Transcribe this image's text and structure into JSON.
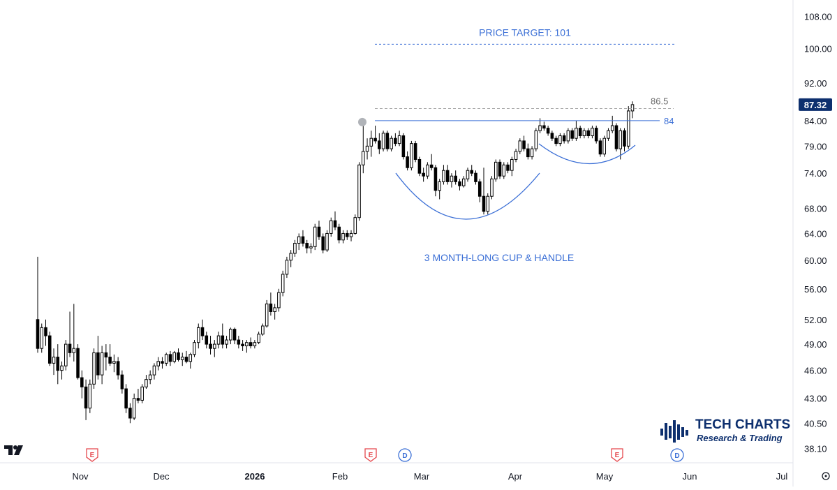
{
  "chart_data": {
    "type": "candlestick",
    "title": "",
    "y_axis_ticks": [
      "108.00",
      "100.00",
      "92.00",
      "84.00",
      "79.00",
      "74.00",
      "68.00",
      "64.00",
      "60.00",
      "56.00",
      "52.00",
      "49.00",
      "46.00",
      "43.00",
      "40.50",
      "38.10"
    ],
    "x_axis_ticks": [
      {
        "label": "Nov",
        "bold": false
      },
      {
        "label": "Dec",
        "bold": false
      },
      {
        "label": "2026",
        "bold": true
      },
      {
        "label": "Feb",
        "bold": false
      },
      {
        "label": "Mar",
        "bold": false
      },
      {
        "label": "Apr",
        "bold": false
      },
      {
        "label": "May",
        "bold": false
      },
      {
        "label": "Jun",
        "bold": false
      },
      {
        "label": "Jul",
        "bold": false
      }
    ],
    "y_scale": "log",
    "ylim": [
      37.5,
      112
    ],
    "last_price": "87.32",
    "annotations": {
      "price_target": "PRICE TARGET: 101",
      "price_target_value": 101,
      "pattern_label": "3 MONTH-LONG CUP & HANDLE",
      "resistance_value": 84,
      "resistance_label": "84",
      "upper_value": 86.5,
      "upper_label": "86.5"
    },
    "event_markers": [
      {
        "type": "E",
        "near": "Nov"
      },
      {
        "type": "E",
        "near": "Feb"
      },
      {
        "type": "D",
        "near": "Feb"
      },
      {
        "type": "E",
        "near": "May"
      },
      {
        "type": "D",
        "near": "May"
      }
    ],
    "series": [
      {
        "values": [
          [
            52.0,
            60.5,
            48.0,
            48.5
          ],
          [
            48.5,
            51.5,
            48.0,
            51.0
          ],
          [
            51.0,
            52.0,
            48.8,
            50.0
          ],
          [
            50.0,
            50.5,
            46.5,
            46.8
          ],
          [
            46.8,
            48.5,
            45.5,
            47.5
          ],
          [
            47.5,
            49.0,
            44.5,
            46.0
          ],
          [
            46.0,
            47.0,
            45.0,
            46.5
          ],
          [
            46.5,
            49.5,
            46.0,
            49.0
          ],
          [
            49.0,
            53.0,
            47.5,
            48.0
          ],
          [
            48.0,
            54.0,
            47.0,
            48.5
          ],
          [
            48.5,
            49.0,
            45.0,
            45.2
          ],
          [
            45.2,
            46.0,
            43.0,
            44.2
          ],
          [
            44.2,
            45.0,
            40.8,
            42.0
          ],
          [
            42.0,
            45.0,
            41.5,
            44.5
          ],
          [
            44.5,
            48.5,
            44.0,
            48.0
          ],
          [
            48.0,
            50.0,
            45.0,
            45.5
          ],
          [
            45.5,
            48.8,
            44.5,
            48.0
          ],
          [
            48.0,
            49.0,
            46.0,
            47.5
          ],
          [
            47.5,
            49.0,
            46.5,
            46.8
          ],
          [
            46.8,
            47.8,
            45.8,
            47.0
          ],
          [
            47.0,
            47.5,
            45.0,
            45.5
          ],
          [
            45.5,
            46.0,
            43.5,
            44.0
          ],
          [
            44.0,
            44.5,
            41.5,
            42.0
          ],
          [
            42.0,
            42.5,
            40.5,
            41.0
          ],
          [
            41.0,
            43.5,
            40.8,
            43.0
          ],
          [
            43.0,
            44.0,
            42.5,
            42.8
          ],
          [
            42.8,
            44.5,
            42.5,
            44.2
          ],
          [
            44.2,
            45.5,
            44.0,
            45.0
          ],
          [
            45.0,
            46.0,
            44.5,
            45.5
          ],
          [
            45.5,
            46.8,
            45.0,
            46.5
          ],
          [
            46.5,
            47.5,
            46.0,
            47.0
          ],
          [
            47.0,
            47.5,
            46.2,
            46.8
          ],
          [
            46.8,
            48.0,
            46.5,
            47.8
          ],
          [
            47.8,
            48.2,
            46.5,
            47.0
          ],
          [
            47.0,
            48.2,
            46.8,
            48.0
          ],
          [
            48.0,
            48.5,
            47.0,
            47.2
          ],
          [
            47.2,
            48.0,
            46.5,
            47.5
          ],
          [
            47.5,
            48.2,
            46.8,
            47.0
          ],
          [
            47.0,
            48.0,
            46.2,
            47.8
          ],
          [
            47.8,
            49.5,
            47.5,
            49.2
          ],
          [
            49.2,
            51.5,
            48.5,
            51.0
          ],
          [
            51.0,
            52.0,
            49.5,
            50.0
          ],
          [
            50.0,
            50.5,
            48.5,
            49.0
          ],
          [
            49.0,
            50.0,
            47.8,
            48.5
          ],
          [
            48.5,
            49.5,
            47.5,
            49.0
          ],
          [
            49.0,
            50.5,
            48.5,
            50.0
          ],
          [
            50.0,
            51.5,
            48.5,
            49.0
          ],
          [
            49.0,
            50.0,
            48.5,
            49.5
          ],
          [
            49.5,
            51.0,
            49.0,
            50.8
          ],
          [
            50.8,
            51.0,
            49.0,
            49.5
          ],
          [
            49.5,
            50.0,
            48.5,
            49.0
          ],
          [
            49.0,
            49.5,
            48.2,
            48.8
          ],
          [
            48.8,
            49.5,
            48.0,
            49.2
          ],
          [
            49.2,
            49.8,
            48.5,
            48.8
          ],
          [
            48.8,
            49.5,
            48.5,
            49.2
          ],
          [
            49.2,
            50.5,
            49.0,
            50.2
          ],
          [
            50.2,
            51.5,
            50.0,
            51.2
          ],
          [
            51.2,
            54.5,
            51.0,
            54.0
          ],
          [
            54.0,
            55.5,
            52.5,
            53.0
          ],
          [
            53.0,
            54.0,
            52.0,
            53.5
          ],
          [
            53.5,
            56.0,
            53.0,
            55.5
          ],
          [
            55.5,
            58.5,
            55.0,
            58.0
          ],
          [
            58.0,
            60.5,
            57.5,
            60.0
          ],
          [
            60.0,
            61.5,
            59.0,
            61.0
          ],
          [
            61.0,
            63.0,
            60.5,
            62.5
          ],
          [
            62.5,
            64.0,
            61.5,
            63.5
          ],
          [
            63.5,
            64.5,
            62.0,
            62.5
          ],
          [
            62.5,
            63.0,
            61.0,
            61.8
          ],
          [
            61.8,
            62.5,
            61.0,
            62.0
          ],
          [
            62.0,
            65.5,
            61.5,
            65.0
          ],
          [
            65.0,
            66.0,
            63.0,
            63.5
          ],
          [
            63.5,
            64.0,
            61.0,
            61.5
          ],
          [
            61.5,
            64.5,
            61.2,
            64.0
          ],
          [
            64.0,
            66.5,
            63.5,
            66.0
          ],
          [
            66.0,
            67.5,
            64.5,
            65.0
          ],
          [
            65.0,
            65.5,
            62.5,
            63.0
          ],
          [
            63.0,
            64.5,
            62.5,
            64.0
          ],
          [
            64.0,
            64.5,
            63.0,
            63.5
          ],
          [
            63.5,
            64.5,
            62.8,
            64.0
          ],
          [
            64.0,
            67.0,
            63.8,
            66.5
          ],
          [
            66.5,
            76.0,
            66.0,
            75.5
          ],
          [
            75.5,
            84.0,
            74.0,
            78.0
          ],
          [
            78.0,
            80.5,
            76.5,
            79.0
          ],
          [
            79.0,
            82.0,
            77.0,
            80.5
          ],
          [
            80.5,
            83.0,
            79.5,
            80.0
          ],
          [
            80.0,
            81.5,
            77.5,
            78.5
          ],
          [
            78.5,
            82.0,
            78.0,
            81.5
          ],
          [
            81.5,
            82.0,
            78.0,
            78.5
          ],
          [
            78.5,
            81.0,
            78.0,
            80.5
          ],
          [
            80.5,
            81.5,
            79.0,
            79.5
          ],
          [
            79.5,
            82.0,
            79.0,
            81.0
          ],
          [
            81.0,
            81.5,
            76.5,
            77.0
          ],
          [
            77.0,
            78.0,
            74.5,
            75.0
          ],
          [
            75.0,
            80.0,
            74.5,
            79.5
          ],
          [
            79.5,
            80.0,
            76.0,
            76.5
          ],
          [
            76.5,
            77.0,
            73.5,
            74.0
          ],
          [
            74.0,
            75.0,
            72.5,
            73.5
          ],
          [
            73.5,
            76.0,
            73.0,
            75.5
          ],
          [
            75.5,
            77.5,
            74.5,
            75.0
          ],
          [
            75.0,
            75.5,
            70.0,
            71.0
          ],
          [
            71.0,
            73.0,
            69.5,
            72.5
          ],
          [
            72.5,
            75.5,
            72.0,
            74.5
          ],
          [
            74.5,
            75.5,
            72.0,
            72.5
          ],
          [
            72.5,
            74.0,
            71.5,
            73.5
          ],
          [
            73.5,
            74.5,
            72.0,
            72.5
          ],
          [
            72.5,
            73.0,
            71.0,
            71.8
          ],
          [
            71.8,
            73.5,
            71.5,
            73.0
          ],
          [
            73.0,
            75.0,
            72.5,
            74.5
          ],
          [
            74.5,
            75.5,
            73.5,
            74.0
          ],
          [
            74.0,
            74.5,
            72.0,
            72.5
          ],
          [
            72.5,
            73.0,
            69.0,
            70.0
          ],
          [
            70.0,
            75.0,
            67.0,
            67.5
          ],
          [
            67.5,
            70.5,
            67.0,
            70.0
          ],
          [
            70.0,
            73.5,
            69.5,
            73.0
          ],
          [
            73.0,
            76.5,
            72.5,
            76.0
          ],
          [
            76.0,
            76.5,
            73.0,
            73.5
          ],
          [
            73.5,
            76.0,
            73.0,
            75.5
          ],
          [
            75.5,
            76.0,
            74.0,
            74.5
          ],
          [
            74.5,
            77.0,
            73.5,
            76.5
          ],
          [
            76.5,
            78.5,
            76.0,
            78.0
          ],
          [
            78.0,
            80.5,
            77.5,
            80.0
          ],
          [
            80.0,
            81.0,
            78.0,
            78.5
          ],
          [
            78.5,
            79.5,
            76.5,
            77.0
          ],
          [
            77.0,
            79.0,
            76.5,
            78.5
          ],
          [
            78.5,
            82.5,
            78.0,
            82.0
          ],
          [
            82.0,
            84.5,
            81.5,
            83.0
          ],
          [
            83.0,
            83.8,
            82.0,
            82.5
          ],
          [
            82.5,
            83.0,
            81.0,
            81.5
          ],
          [
            81.5,
            82.0,
            80.0,
            80.5
          ],
          [
            80.5,
            81.0,
            79.0,
            79.5
          ],
          [
            79.5,
            81.5,
            79.0,
            81.0
          ],
          [
            81.0,
            81.5,
            79.5,
            80.0
          ],
          [
            80.0,
            82.5,
            79.5,
            82.0
          ],
          [
            82.0,
            82.5,
            80.0,
            80.5
          ],
          [
            80.5,
            84.0,
            80.0,
            82.5
          ],
          [
            82.5,
            83.0,
            80.5,
            81.0
          ],
          [
            81.0,
            82.5,
            80.5,
            82.0
          ],
          [
            82.0,
            82.5,
            80.5,
            81.0
          ],
          [
            81.0,
            83.0,
            80.5,
            82.5
          ],
          [
            82.5,
            83.0,
            79.5,
            80.0
          ],
          [
            80.0,
            80.5,
            77.0,
            77.5
          ],
          [
            77.5,
            81.0,
            77.0,
            80.5
          ],
          [
            80.5,
            82.5,
            80.0,
            82.0
          ],
          [
            82.0,
            85.0,
            81.5,
            83.0
          ],
          [
            83.0,
            83.5,
            78.0,
            78.5
          ],
          [
            78.5,
            82.5,
            76.5,
            82.0
          ],
          [
            82.0,
            82.5,
            78.0,
            79.0
          ],
          [
            79.0,
            87.0,
            78.5,
            86.0
          ],
          [
            86.0,
            88.0,
            84.5,
            87.32
          ]
        ]
      }
    ]
  },
  "logo": {
    "title": "TECH CHARTS",
    "subtitle": "Research & Trading"
  },
  "colors": {
    "up": "#ffffff",
    "down": "#000000",
    "annotation_blue": "#3b6fd6",
    "price_badge": "#0d2f6e",
    "dashed_gray": "#a7a7a7",
    "event_red": "#e5484d",
    "event_blue": "#3b6fd6"
  }
}
